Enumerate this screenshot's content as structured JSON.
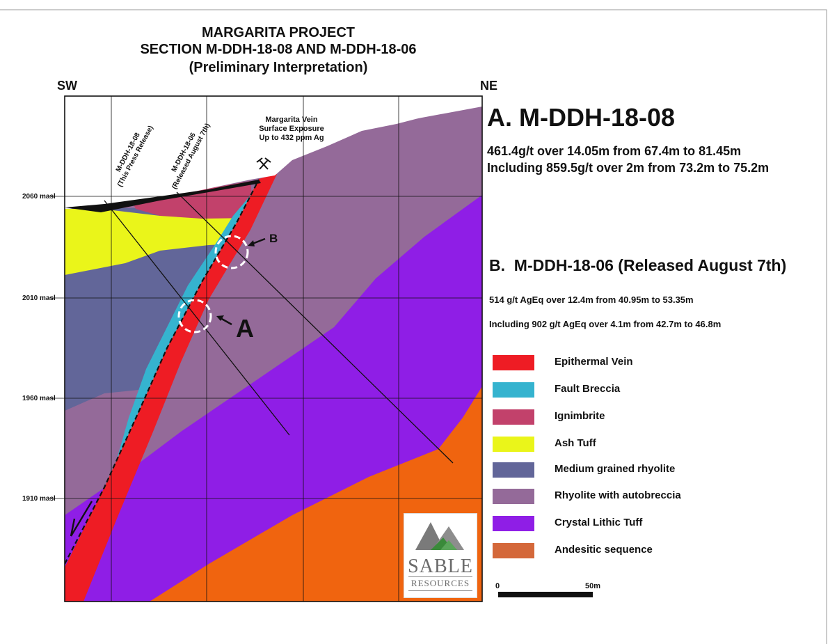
{
  "title": {
    "line1": "MARGARITA PROJECT",
    "line2": "SECTION M-DDH-18-08 AND M-DDH-18-06",
    "line3": "(Preliminary Interpretation)"
  },
  "directions": {
    "left": "SW",
    "right": "NE"
  },
  "elevations": [
    "2060 masl",
    "2010 masl",
    "1960 masl",
    "1910 masl"
  ],
  "section": {
    "vein_note": [
      "Margarita Vein",
      "Surface Exposure",
      "Up to 432 ppm Ag"
    ],
    "hole_08_label": [
      "M-DDH-18-08",
      "(This Press Release)"
    ],
    "hole_06_label": [
      "M-DDH-18-06",
      "(Released August 7th)"
    ],
    "target_a": "A",
    "target_b": "B"
  },
  "result_a": {
    "heading": "A. M-DDH-18-08",
    "line1": "461.4g/t over 14.05m from 67.4m to 81.45m",
    "line2": "Including 859.5g/t over 2m from 73.2m to 75.2m"
  },
  "result_b": {
    "heading": "B.  M-DDH-18-06 (Released August 7th)",
    "line1": "514 g/t AgEq over 12.4m from 40.95m to 53.35m",
    "line2": "Including 902 g/t AgEq over 4.1m from 42.7m to 46.8m"
  },
  "legend": [
    {
      "label": "Epithermal Vein",
      "color": "#ee1c24"
    },
    {
      "label": "Fault Breccia",
      "color": "#35b3cf"
    },
    {
      "label": "Ignimbrite",
      "color": "#c2416b"
    },
    {
      "label": "Ash Tuff",
      "color": "#eaf51a"
    },
    {
      "label": "Medium grained rhyolite",
      "color": "#626699"
    },
    {
      "label": "Rhyolite with autobreccia",
      "color": "#946a99"
    },
    {
      "label": "Crystal Lithic Tuff",
      "color": "#8f1ee6"
    },
    {
      "label": "Andesitic sequence",
      "color": "#d4683a"
    }
  ],
  "scale_bar": {
    "start": "0",
    "end": "50m"
  },
  "logo": {
    "word1": "SABLE",
    "word2": "RESOURCES"
  }
}
